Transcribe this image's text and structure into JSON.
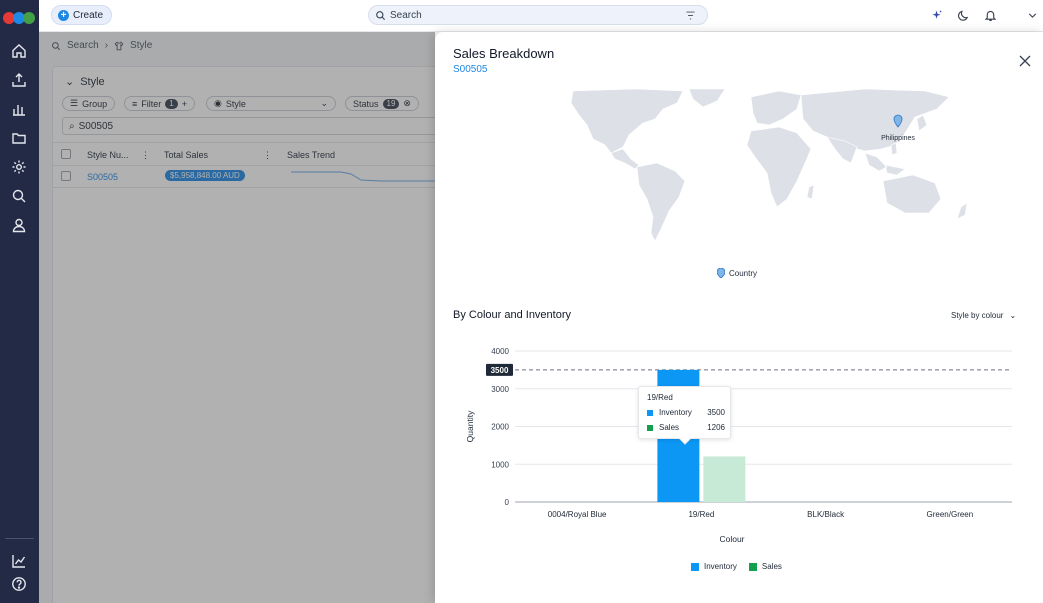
{
  "topbar": {
    "create_label": "Create",
    "search_placeholder": "Search"
  },
  "breadcrumb": {
    "search": "Search",
    "style": "Style"
  },
  "card": {
    "title": "Style",
    "chips": {
      "group": "Group",
      "filter": "Filter",
      "filter_count": "1",
      "style": "Style",
      "status": "Status",
      "status_count": "19"
    },
    "search_value": "S00505",
    "columns": [
      "Style Nu...",
      "Total Sales",
      "Sales Trend"
    ],
    "row": {
      "style_number": "S00505",
      "total_sales": "$5,958,848.00 AUD"
    }
  },
  "panel": {
    "title": "Sales Breakdown",
    "subtitle": "S00505",
    "map_marker_label": "Philippines",
    "map_legend": "Country",
    "section_title": "By Colour and Inventory",
    "style_dropdown": "Style by colour",
    "tooltip": {
      "title": "19/Red",
      "rows": [
        {
          "name": "Inventory",
          "value": "3500"
        },
        {
          "name": "Sales",
          "value": "1206"
        }
      ]
    }
  },
  "colors": {
    "inventory": "#0c97f5",
    "sales": "#13a04e",
    "sales_bar": "#c7ead6",
    "sidebar": "#232a45",
    "accent": "#1e88e5"
  },
  "chart_data": {
    "type": "bar",
    "categories": [
      "0004/Royal Blue",
      "19/Red",
      "BLK/Black",
      "Green/Green"
    ],
    "series": [
      {
        "name": "Inventory",
        "values": [
          0,
          3500,
          0,
          0
        ]
      },
      {
        "name": "Sales",
        "values": [
          0,
          1206,
          0,
          0
        ]
      }
    ],
    "xlabel": "Colour",
    "ylabel": "Quantity",
    "ylim": [
      0,
      4000
    ],
    "yticks": [
      0,
      1000,
      2000,
      3000,
      4000
    ],
    "reference_line": {
      "value": 3500,
      "label": "3500"
    },
    "legend_position": "bottom",
    "grid": true
  }
}
